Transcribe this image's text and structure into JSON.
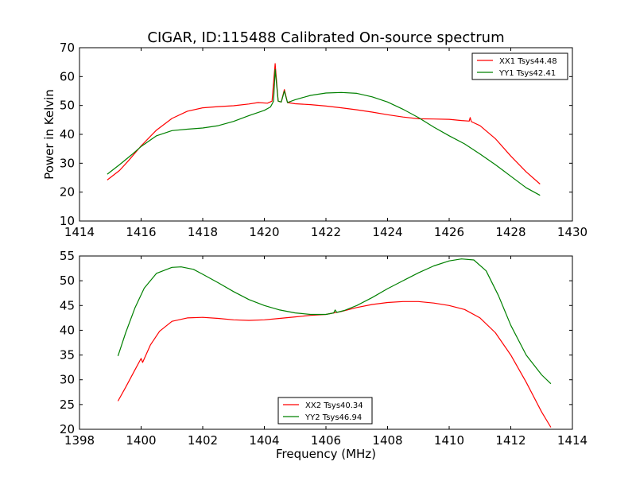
{
  "figure": {
    "title": "CIGAR, ID:115488 Calibrated On-source spectrum",
    "xlabel": "Frequency (MHz)"
  },
  "chart_data": [
    {
      "type": "line",
      "title": "CIGAR, ID:115488 Calibrated On-source spectrum",
      "ylabel": "Power in Kelvin",
      "xlabel": "",
      "xlim": [
        1414,
        1430
      ],
      "ylim": [
        10,
        70
      ],
      "xticks": [
        1414,
        1416,
        1418,
        1420,
        1422,
        1424,
        1426,
        1428,
        1430
      ],
      "yticks": [
        10,
        20,
        30,
        40,
        50,
        60,
        70
      ],
      "legend_position": "top-right",
      "grid": false,
      "series": [
        {
          "name": "XX1 Tsys44.48",
          "color": "#ff0000",
          "points": [
            [
              1414.9,
              24.2
            ],
            [
              1415.3,
              27.5
            ],
            [
              1415.6,
              31.0
            ],
            [
              1416.0,
              36.0
            ],
            [
              1416.5,
              41.5
            ],
            [
              1417.0,
              45.5
            ],
            [
              1417.5,
              48.0
            ],
            [
              1418.0,
              49.2
            ],
            [
              1418.5,
              49.6
            ],
            [
              1419.0,
              49.9
            ],
            [
              1419.5,
              50.5
            ],
            [
              1419.8,
              51.0
            ],
            [
              1420.1,
              50.8
            ],
            [
              1420.25,
              51.5
            ],
            [
              1420.35,
              64.5
            ],
            [
              1420.45,
              51.5
            ],
            [
              1420.55,
              51.2
            ],
            [
              1420.65,
              55.5
            ],
            [
              1420.75,
              51.0
            ],
            [
              1421.0,
              50.6
            ],
            [
              1421.5,
              50.3
            ],
            [
              1422.0,
              49.8
            ],
            [
              1422.5,
              49.2
            ],
            [
              1423.0,
              48.5
            ],
            [
              1423.5,
              47.7
            ],
            [
              1424.0,
              46.8
            ],
            [
              1424.5,
              46.0
            ],
            [
              1425.0,
              45.4
            ],
            [
              1425.5,
              45.3
            ],
            [
              1426.0,
              45.2
            ],
            [
              1426.4,
              44.8
            ],
            [
              1426.65,
              44.6
            ],
            [
              1426.68,
              45.8
            ],
            [
              1426.72,
              44.4
            ],
            [
              1427.0,
              43.0
            ],
            [
              1427.5,
              38.5
            ],
            [
              1428.0,
              32.5
            ],
            [
              1428.5,
              27.0
            ],
            [
              1428.95,
              22.8
            ]
          ]
        },
        {
          "name": "YY1 Tsys42.41",
          "color": "#008000",
          "points": [
            [
              1414.9,
              26.2
            ],
            [
              1415.3,
              29.5
            ],
            [
              1415.7,
              33.0
            ],
            [
              1416.0,
              35.8
            ],
            [
              1416.5,
              39.5
            ],
            [
              1417.0,
              41.3
            ],
            [
              1417.5,
              41.8
            ],
            [
              1418.0,
              42.2
            ],
            [
              1418.5,
              43.0
            ],
            [
              1419.0,
              44.5
            ],
            [
              1419.5,
              46.5
            ],
            [
              1420.0,
              48.3
            ],
            [
              1420.2,
              49.5
            ],
            [
              1420.3,
              51.5
            ],
            [
              1420.35,
              62.5
            ],
            [
              1420.45,
              51.5
            ],
            [
              1420.55,
              51.2
            ],
            [
              1420.65,
              55.0
            ],
            [
              1420.75,
              51.0
            ],
            [
              1421.0,
              52.0
            ],
            [
              1421.5,
              53.5
            ],
            [
              1422.0,
              54.3
            ],
            [
              1422.5,
              54.5
            ],
            [
              1423.0,
              54.2
            ],
            [
              1423.5,
              53.0
            ],
            [
              1424.0,
              51.2
            ],
            [
              1424.5,
              48.7
            ],
            [
              1425.0,
              45.8
            ],
            [
              1425.5,
              42.5
            ],
            [
              1426.0,
              39.5
            ],
            [
              1426.5,
              36.7
            ],
            [
              1427.0,
              33.2
            ],
            [
              1427.5,
              29.5
            ],
            [
              1428.0,
              25.5
            ],
            [
              1428.5,
              21.5
            ],
            [
              1428.95,
              18.9
            ]
          ]
        }
      ]
    },
    {
      "type": "line",
      "title": "",
      "ylabel": "",
      "xlabel": "Frequency (MHz)",
      "xlim": [
        1398,
        1414
      ],
      "ylim": [
        20,
        55
      ],
      "xticks": [
        1398,
        1400,
        1402,
        1404,
        1406,
        1408,
        1410,
        1412,
        1414
      ],
      "yticks": [
        20,
        25,
        30,
        35,
        40,
        45,
        50,
        55
      ],
      "legend_position": "lower center",
      "grid": false,
      "series": [
        {
          "name": "XX2 Tsys40.34",
          "color": "#ff0000",
          "points": [
            [
              1399.25,
              25.7
            ],
            [
              1399.5,
              28.5
            ],
            [
              1399.8,
              32.0
            ],
            [
              1400.0,
              34.3
            ],
            [
              1400.05,
              33.5
            ],
            [
              1400.3,
              37.0
            ],
            [
              1400.6,
              39.8
            ],
            [
              1401.0,
              41.8
            ],
            [
              1401.5,
              42.5
            ],
            [
              1402.0,
              42.6
            ],
            [
              1402.5,
              42.4
            ],
            [
              1403.0,
              42.1
            ],
            [
              1403.5,
              42.0
            ],
            [
              1404.0,
              42.1
            ],
            [
              1404.5,
              42.4
            ],
            [
              1405.0,
              42.7
            ],
            [
              1405.5,
              43.0
            ],
            [
              1406.0,
              43.2
            ],
            [
              1406.5,
              43.8
            ],
            [
              1407.0,
              44.6
            ],
            [
              1407.5,
              45.2
            ],
            [
              1408.0,
              45.6
            ],
            [
              1408.5,
              45.8
            ],
            [
              1409.0,
              45.8
            ],
            [
              1409.5,
              45.5
            ],
            [
              1410.0,
              45.0
            ],
            [
              1410.5,
              44.2
            ],
            [
              1411.0,
              42.5
            ],
            [
              1411.5,
              39.5
            ],
            [
              1412.0,
              35.0
            ],
            [
              1412.5,
              29.5
            ],
            [
              1413.0,
              23.5
            ],
            [
              1413.3,
              20.4
            ]
          ]
        },
        {
          "name": "YY2 Tsys46.94",
          "color": "#008000",
          "points": [
            [
              1399.25,
              34.8
            ],
            [
              1399.5,
              39.5
            ],
            [
              1399.8,
              44.5
            ],
            [
              1400.1,
              48.5
            ],
            [
              1400.5,
              51.5
            ],
            [
              1401.0,
              52.7
            ],
            [
              1401.3,
              52.8
            ],
            [
              1401.7,
              52.3
            ],
            [
              1402.0,
              51.3
            ],
            [
              1402.5,
              49.6
            ],
            [
              1403.0,
              47.8
            ],
            [
              1403.5,
              46.2
            ],
            [
              1404.0,
              45.0
            ],
            [
              1404.5,
              44.1
            ],
            [
              1405.0,
              43.5
            ],
            [
              1405.5,
              43.2
            ],
            [
              1406.0,
              43.2
            ],
            [
              1406.25,
              43.5
            ],
            [
              1406.3,
              44.1
            ],
            [
              1406.35,
              43.6
            ],
            [
              1406.6,
              44.0
            ],
            [
              1407.0,
              45.0
            ],
            [
              1407.5,
              46.6
            ],
            [
              1408.0,
              48.4
            ],
            [
              1408.5,
              50.0
            ],
            [
              1409.0,
              51.6
            ],
            [
              1409.5,
              53.0
            ],
            [
              1410.0,
              54.0
            ],
            [
              1410.4,
              54.4
            ],
            [
              1410.8,
              54.2
            ],
            [
              1411.2,
              52.0
            ],
            [
              1411.6,
              47.0
            ],
            [
              1412.0,
              41.0
            ],
            [
              1412.5,
              35.0
            ],
            [
              1413.0,
              31.0
            ],
            [
              1413.3,
              29.2
            ]
          ]
        }
      ]
    }
  ]
}
